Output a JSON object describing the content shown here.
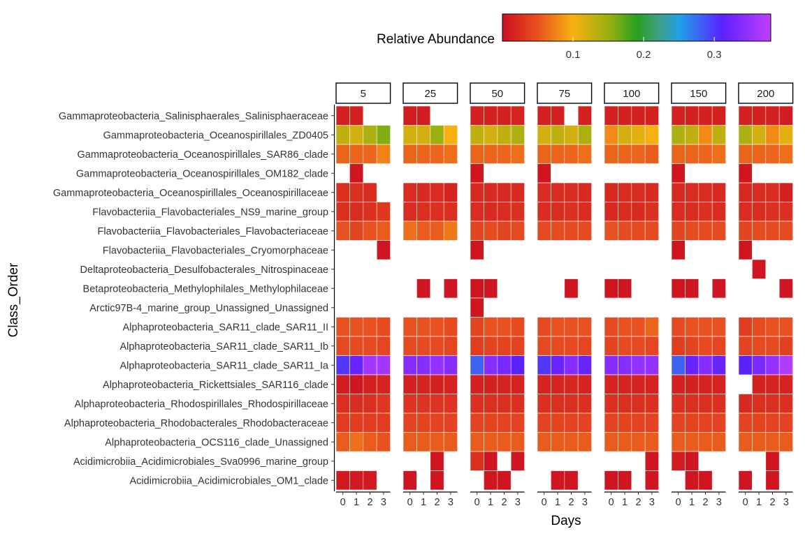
{
  "chart_data": {
    "type": "heatmap",
    "title": "",
    "xlabel": "Days",
    "ylabel": "Class_Order",
    "x_ticks": [
      "0",
      "1",
      "2",
      "3"
    ],
    "facets": [
      "5",
      "25",
      "50",
      "75",
      "100",
      "150",
      "200"
    ],
    "rows": [
      "Gammaproteobacteria_Salinisphaerales_Salinisphaeraceae",
      "Gammaproteobacteria_Oceanospirillales_ZD0405",
      "Gammaproteobacteria_Oceanospirillales_SAR86_clade",
      "Gammaproteobacteria_Oceanospirillales_OM182_clade",
      "Gammaproteobacteria_Oceanospirillales_Oceanospirillaceae",
      "Flavobacteriia_Flavobacteriales_NS9_marine_group",
      "Flavobacteriia_Flavobacteriales_Flavobacteriaceae",
      "Flavobacteriia_Flavobacteriales_Cryomorphaceae",
      "Deltaproteobacteria_Desulfobacterales_Nitrospinaceae",
      "Betaproteobacteria_Methylophilales_Methylophilaceae",
      "Arctic97B-4_marine_group_Unassigned_Unassigned",
      "Alphaproteobacteria_SAR11_clade_SAR11_II",
      "Alphaproteobacteria_SAR11_clade_SAR11_Ib",
      "Alphaproteobacteria_SAR11_clade_SAR11_Ia",
      "Alphaproteobacteria_Rickettsiales_SAR116_clade",
      "Alphaproteobacteria_Rhodospirillales_Rhodospirillaceae",
      "Alphaproteobacteria_Rhodobacterales_Rhodobacteraceae",
      "Alphaproteobacteria_OCS116_clade_Unassigned",
      "Acidimicrobiia_Acidimicrobiales_Sva0996_marine_group",
      "Acidimicrobiia_Acidimicrobiales_OM1_clade"
    ],
    "values": {
      "5": [
        [
          0.012,
          0.012,
          null,
          null
        ],
        [
          0.13,
          0.12,
          0.14,
          0.16
        ],
        [
          0.06,
          0.06,
          0.06,
          0.075
        ],
        [
          null,
          0.005,
          null,
          null
        ],
        [
          0.025,
          0.025,
          0.022,
          null
        ],
        [
          0.025,
          0.022,
          0.025,
          0.032
        ],
        [
          0.05,
          0.04,
          0.05,
          0.055
        ],
        [
          null,
          null,
          null,
          0.005
        ],
        [
          null,
          null,
          null,
          null
        ],
        [
          null,
          null,
          null,
          null
        ],
        [
          null,
          null,
          null,
          null
        ],
        [
          0.05,
          0.05,
          0.05,
          0.045
        ],
        [
          0.045,
          0.045,
          0.045,
          0.042
        ],
        [
          0.3,
          0.32,
          0.36,
          0.36
        ],
        [
          0.01,
          0.005,
          0.012,
          0.015
        ],
        [
          0.025,
          0.022,
          0.025,
          0.03
        ],
        [
          0.035,
          0.035,
          0.035,
          0.035
        ],
        [
          0.055,
          0.065,
          0.055,
          0.05
        ],
        [
          null,
          null,
          null,
          null
        ],
        [
          0.008,
          0.008,
          0.008,
          null
        ]
      ],
      "25": [
        [
          0.01,
          0.01,
          null,
          null
        ],
        [
          0.12,
          0.12,
          0.15,
          0.1
        ],
        [
          0.06,
          0.06,
          0.06,
          0.065
        ],
        [
          null,
          null,
          null,
          null
        ],
        [
          0.022,
          0.02,
          0.022,
          0.015
        ],
        [
          0.022,
          0.025,
          0.025,
          0.025
        ],
        [
          0.065,
          0.055,
          0.055,
          0.07
        ],
        [
          null,
          null,
          null,
          null
        ],
        [
          null,
          null,
          null,
          null
        ],
        [
          null,
          0.005,
          null,
          0.005
        ],
        [
          null,
          null,
          null,
          null
        ],
        [
          0.05,
          0.05,
          0.05,
          0.045
        ],
        [
          0.045,
          0.045,
          0.045,
          0.042
        ],
        [
          0.34,
          0.34,
          0.35,
          0.34
        ],
        [
          0.012,
          0.015,
          0.012,
          0.015
        ],
        [
          0.028,
          0.028,
          0.028,
          0.028
        ],
        [
          0.04,
          0.04,
          0.04,
          0.04
        ],
        [
          0.055,
          0.055,
          0.055,
          0.055
        ],
        [
          null,
          null,
          0.005,
          null
        ],
        [
          0.005,
          null,
          0.005,
          null
        ]
      ],
      "50": [
        [
          0.012,
          0.012,
          0.012,
          0.015
        ],
        [
          0.13,
          0.12,
          0.13,
          0.14
        ],
        [
          0.06,
          0.06,
          0.06,
          0.065
        ],
        [
          0.005,
          null,
          null,
          null
        ],
        [
          0.02,
          0.02,
          0.02,
          0.02
        ],
        [
          0.022,
          0.02,
          0.022,
          0.025
        ],
        [
          0.04,
          0.045,
          0.04,
          0.045
        ],
        [
          0.005,
          null,
          null,
          null
        ],
        [
          null,
          null,
          null,
          null
        ],
        [
          0.005,
          0.005,
          null,
          null
        ],
        [
          0.005,
          null,
          null,
          null
        ],
        [
          0.04,
          0.05,
          0.05,
          0.045
        ],
        [
          0.035,
          0.04,
          0.04,
          0.04
        ],
        [
          0.28,
          0.34,
          0.33,
          0.31
        ],
        [
          0.012,
          0.012,
          0.015,
          0.015
        ],
        [
          0.025,
          0.025,
          0.025,
          0.025
        ],
        [
          0.04,
          0.04,
          0.04,
          0.04
        ],
        [
          0.055,
          0.055,
          0.055,
          0.055
        ],
        [
          0.025,
          0.005,
          null,
          0.005
        ],
        [
          null,
          0.005,
          0.005,
          null
        ]
      ],
      "75": [
        [
          0.012,
          0.012,
          null,
          0.012
        ],
        [
          0.12,
          0.13,
          0.12,
          0.14
        ],
        [
          0.06,
          0.06,
          0.06,
          0.065
        ],
        [
          0.005,
          null,
          null,
          null
        ],
        [
          0.022,
          0.022,
          0.022,
          0.02
        ],
        [
          0.022,
          0.022,
          0.025,
          0.022
        ],
        [
          0.045,
          0.045,
          0.045,
          0.045
        ],
        [
          null,
          null,
          null,
          null
        ],
        [
          null,
          null,
          null,
          null
        ],
        [
          null,
          null,
          0.005,
          null
        ],
        [
          null,
          null,
          null,
          null
        ],
        [
          0.045,
          0.05,
          0.05,
          0.05
        ],
        [
          0.045,
          0.045,
          0.045,
          0.042
        ],
        [
          0.3,
          0.32,
          0.34,
          0.32
        ],
        [
          0.015,
          0.015,
          0.018,
          0.015
        ],
        [
          0.025,
          0.025,
          0.025,
          0.025
        ],
        [
          0.04,
          0.04,
          0.04,
          0.04
        ],
        [
          0.055,
          0.055,
          0.055,
          0.055
        ],
        [
          null,
          null,
          null,
          null
        ],
        [
          null,
          0.005,
          0.005,
          null
        ]
      ],
      "100": [
        [
          0.012,
          0.012,
          0.012,
          0.012
        ],
        [
          0.08,
          0.12,
          0.11,
          0.1
        ],
        [
          0.06,
          0.06,
          0.06,
          0.055
        ],
        [
          null,
          null,
          null,
          null
        ],
        [
          0.02,
          0.022,
          0.022,
          0.02
        ],
        [
          0.02,
          0.022,
          0.02,
          0.025
        ],
        [
          0.05,
          0.045,
          0.045,
          0.045
        ],
        [
          null,
          null,
          null,
          null
        ],
        [
          null,
          null,
          null,
          null
        ],
        [
          0.005,
          0.005,
          null,
          null
        ],
        [
          null,
          null,
          null,
          null
        ],
        [
          0.045,
          0.05,
          0.05,
          0.06
        ],
        [
          0.04,
          0.045,
          0.045,
          0.042
        ],
        [
          0.34,
          0.34,
          0.35,
          0.35
        ],
        [
          0.015,
          0.015,
          0.015,
          0.015
        ],
        [
          0.025,
          0.025,
          0.025,
          0.025
        ],
        [
          0.04,
          0.04,
          0.04,
          0.04
        ],
        [
          0.055,
          0.055,
          0.055,
          0.055
        ],
        [
          null,
          null,
          null,
          0.005
        ],
        [
          0.005,
          0.005,
          null,
          0.005
        ]
      ],
      "150": [
        [
          0.012,
          0.012,
          0.012,
          0.012
        ],
        [
          0.14,
          0.13,
          0.08,
          0.13
        ],
        [
          0.06,
          0.06,
          0.06,
          0.065
        ],
        [
          0.005,
          null,
          null,
          null
        ],
        [
          0.02,
          0.022,
          0.022,
          0.02
        ],
        [
          0.022,
          0.022,
          0.025,
          0.022
        ],
        [
          0.04,
          0.045,
          0.045,
          0.045
        ],
        [
          0.005,
          null,
          null,
          null
        ],
        [
          null,
          null,
          null,
          null
        ],
        [
          0.005,
          0.005,
          null,
          0.005
        ],
        [
          null,
          null,
          null,
          null
        ],
        [
          0.045,
          0.05,
          0.05,
          0.05
        ],
        [
          0.035,
          0.04,
          0.045,
          0.042
        ],
        [
          0.28,
          0.32,
          0.34,
          0.32
        ],
        [
          0.012,
          0.012,
          0.015,
          0.015
        ],
        [
          0.025,
          0.025,
          0.025,
          0.025
        ],
        [
          0.04,
          0.04,
          0.04,
          0.04
        ],
        [
          0.055,
          0.055,
          0.055,
          0.055
        ],
        [
          0.01,
          0.005,
          null,
          null
        ],
        [
          null,
          0.005,
          0.005,
          null
        ]
      ],
      "200": [
        [
          0.012,
          0.012,
          0.012,
          0.01
        ],
        [
          0.14,
          0.12,
          0.08,
          0.11
        ],
        [
          0.06,
          0.06,
          0.06,
          0.065
        ],
        [
          0.005,
          null,
          null,
          null
        ],
        [
          0.02,
          0.022,
          0.022,
          0.012
        ],
        [
          0.022,
          0.022,
          0.025,
          0.025
        ],
        [
          0.04,
          0.045,
          0.045,
          0.045
        ],
        [
          0.005,
          null,
          null,
          null
        ],
        [
          null,
          0.005,
          null,
          null
        ],
        [
          null,
          null,
          null,
          0.005
        ],
        [
          null,
          null,
          null,
          null
        ],
        [
          0.035,
          0.045,
          0.05,
          0.05
        ],
        [
          0.04,
          0.045,
          0.045,
          0.038
        ],
        [
          0.31,
          0.33,
          0.35,
          0.37
        ],
        [
          null,
          0.012,
          0.015,
          0.015
        ],
        [
          0.02,
          0.025,
          0.025,
          0.025
        ],
        [
          0.04,
          0.04,
          0.04,
          0.04
        ],
        [
          0.055,
          0.055,
          0.055,
          0.055
        ],
        [
          null,
          null,
          0.005,
          null
        ],
        [
          0.005,
          null,
          0.005,
          null
        ]
      ]
    },
    "legend": {
      "title": "Relative Abundance",
      "position": "top",
      "range": [
        0,
        0.38
      ],
      "ticks": [
        0.1,
        0.2,
        0.3
      ],
      "tick_labels": [
        "0.1",
        "0.2",
        "0.3"
      ]
    },
    "colorscale": [
      [
        0.0,
        "#cc1020"
      ],
      [
        0.13,
        "#e85020"
      ],
      [
        0.26,
        "#f8b010"
      ],
      [
        0.4,
        "#96b010"
      ],
      [
        0.5,
        "#28a020"
      ],
      [
        0.58,
        "#40a080"
      ],
      [
        0.66,
        "#20a0e8"
      ],
      [
        0.82,
        "#5c20ff"
      ],
      [
        1.0,
        "#c040ff"
      ]
    ],
    "grid": false
  }
}
